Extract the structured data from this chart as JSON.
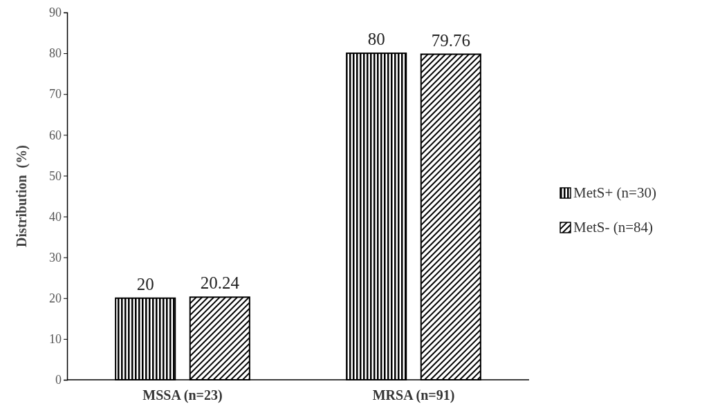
{
  "chart_data": {
    "type": "bar",
    "ylabel": "Distribution  (%)",
    "categories": [
      "MSSA (n=23)",
      "MRSA (n=91)"
    ],
    "series": [
      {
        "name": "MetS+ (n=30)",
        "color": "#000000",
        "values": [
          20,
          80
        ]
      },
      {
        "name": "MetS- (n=84)",
        "color": "#000000",
        "values": [
          20.24,
          79.76
        ]
      }
    ],
    "ylim": [
      0,
      90
    ],
    "yticks": [
      0,
      10,
      20,
      30,
      40,
      50,
      60,
      70,
      80,
      90
    ],
    "grid": false,
    "legend": "right",
    "data_labels": true
  }
}
